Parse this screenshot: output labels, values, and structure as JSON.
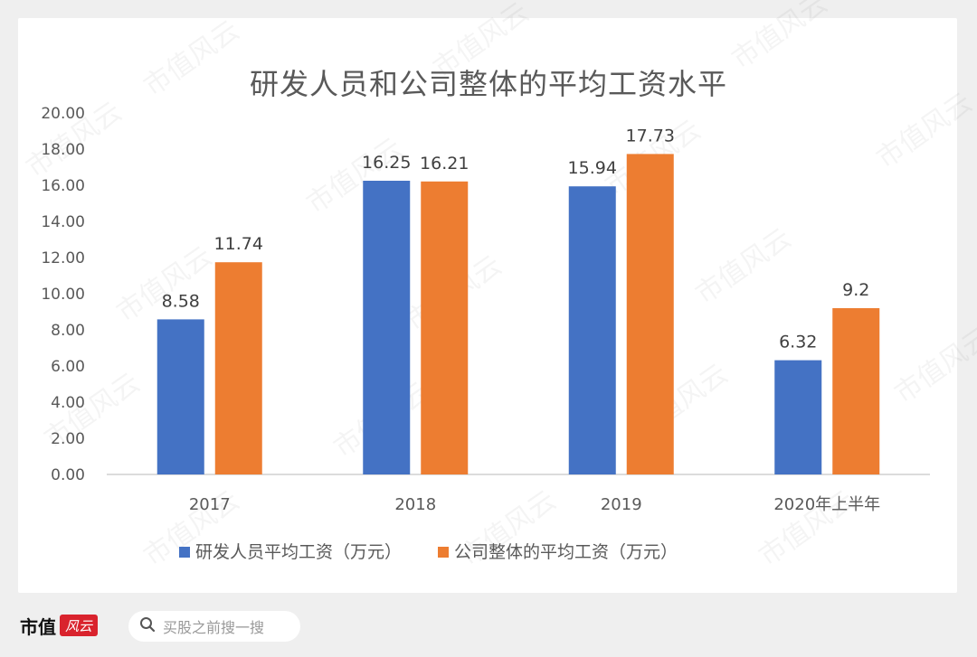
{
  "chart_data": {
    "type": "bar",
    "title": "研发人员和公司整体的平均工资水平",
    "categories": [
      "2017",
      "2018",
      "2019",
      "2020年上半年"
    ],
    "series": [
      {
        "name": "研发人员平均工资（万元）",
        "color": "#4472c4",
        "values": [
          8.58,
          16.25,
          15.94,
          6.32
        ],
        "labels": [
          "8.58",
          "16.25",
          "15.94",
          "6.32"
        ]
      },
      {
        "name": "公司整体的平均工资（万元）",
        "color": "#ed7d31",
        "values": [
          11.74,
          16.21,
          17.73,
          9.2
        ],
        "labels": [
          "11.74",
          "16.21",
          "17.73",
          "9.2"
        ]
      }
    ],
    "ylim": [
      0,
      20
    ],
    "yticks": [
      "0.00",
      "2.00",
      "4.00",
      "6.00",
      "8.00",
      "10.00",
      "12.00",
      "14.00",
      "16.00",
      "18.00",
      "20.00"
    ],
    "grid": false,
    "legend_position": "bottom"
  },
  "watermark": "市值风云",
  "footer": {
    "brand": "市值",
    "brand_seal": "风云",
    "search_placeholder": "买股之前搜一搜",
    "search_icon": "search-icon"
  }
}
